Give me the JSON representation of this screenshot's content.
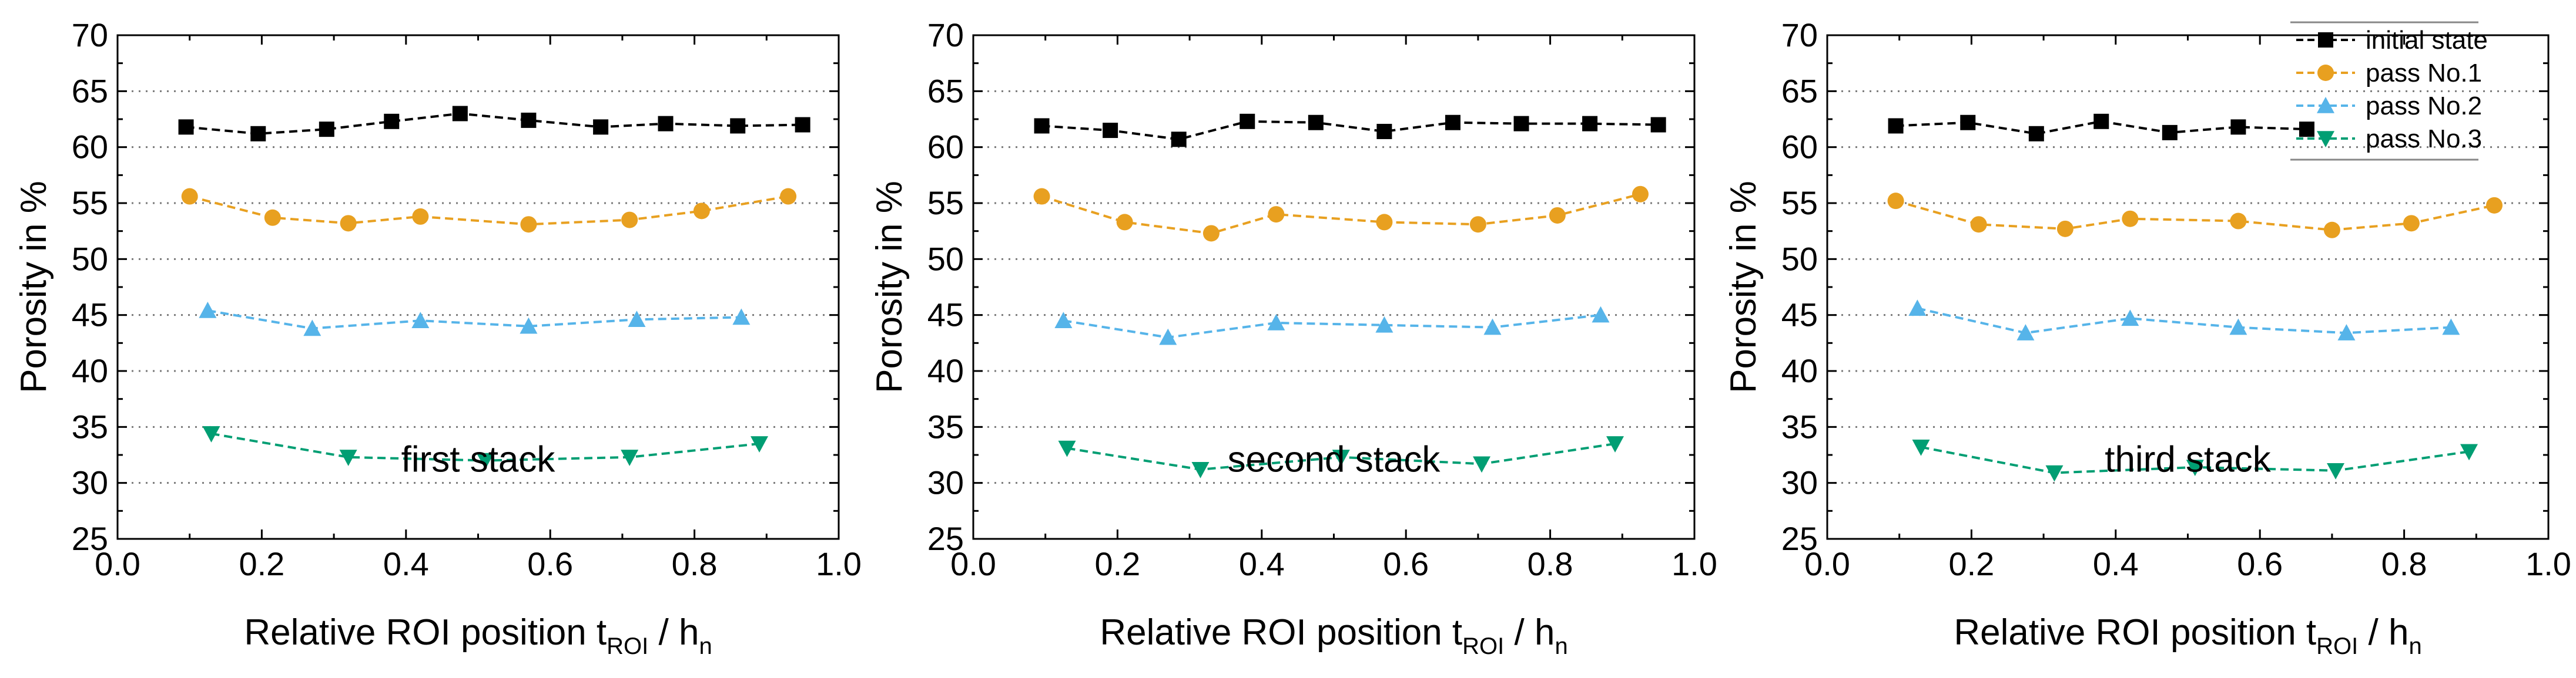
{
  "chart_data": [
    {
      "type": "line",
      "annotation": "first stack",
      "xlabel_parts": [
        "Relative ROI position t",
        "ROI",
        " / h",
        "n"
      ],
      "ylabel": "Porosity in %",
      "xlim": [
        0.0,
        1.0
      ],
      "ylim": [
        25,
        70
      ],
      "xticks": [
        "0.0",
        "0.2",
        "0.4",
        "0.6",
        "0.8",
        "1.0"
      ],
      "yticks": [
        "25",
        "30",
        "35",
        "40",
        "45",
        "50",
        "55",
        "60",
        "65",
        "70"
      ],
      "grid": "horizontal dotted",
      "series": [
        {
          "key": "initial",
          "x": [
            0.095,
            0.195,
            0.29,
            0.38,
            0.475,
            0.57,
            0.67,
            0.76,
            0.86,
            0.95
          ],
          "y": [
            61.8,
            61.2,
            61.6,
            62.3,
            63.0,
            62.4,
            61.8,
            62.1,
            61.9,
            62.0
          ]
        },
        {
          "key": "pass1",
          "x": [
            0.1,
            0.215,
            0.32,
            0.42,
            0.57,
            0.71,
            0.81,
            0.93
          ],
          "y": [
            55.6,
            53.7,
            53.2,
            53.8,
            53.1,
            53.5,
            54.3,
            55.6
          ]
        },
        {
          "key": "pass2",
          "x": [
            0.125,
            0.27,
            0.42,
            0.57,
            0.72,
            0.865
          ],
          "y": [
            45.4,
            43.8,
            44.5,
            44.0,
            44.6,
            44.8
          ]
        },
        {
          "key": "pass3",
          "x": [
            0.13,
            0.32,
            0.51,
            0.71,
            0.89
          ],
          "y": [
            34.4,
            32.3,
            32.0,
            32.3,
            33.5
          ]
        }
      ]
    },
    {
      "type": "line",
      "annotation": "second stack",
      "xlabel_parts": [
        "Relative ROI position t",
        "ROI",
        " / h",
        "n"
      ],
      "ylabel": "Porosity in %",
      "xlim": [
        0.0,
        1.0
      ],
      "ylim": [
        25,
        70
      ],
      "xticks": [
        "0.0",
        "0.2",
        "0.4",
        "0.6",
        "0.8",
        "1.0"
      ],
      "yticks": [
        "25",
        "30",
        "35",
        "40",
        "45",
        "50",
        "55",
        "60",
        "65",
        "70"
      ],
      "grid": "horizontal dotted",
      "series": [
        {
          "key": "initial",
          "x": [
            0.095,
            0.19,
            0.285,
            0.38,
            0.475,
            0.57,
            0.665,
            0.76,
            0.855,
            0.95
          ],
          "y": [
            61.9,
            61.5,
            60.7,
            62.3,
            62.2,
            61.4,
            62.2,
            62.1,
            62.1,
            62.0
          ]
        },
        {
          "key": "pass1",
          "x": [
            0.095,
            0.21,
            0.33,
            0.42,
            0.57,
            0.7,
            0.81,
            0.925
          ],
          "y": [
            55.6,
            53.3,
            52.3,
            54.0,
            53.3,
            53.1,
            53.9,
            55.8
          ]
        },
        {
          "key": "pass2",
          "x": [
            0.125,
            0.27,
            0.42,
            0.57,
            0.72,
            0.87
          ],
          "y": [
            44.5,
            43.0,
            44.3,
            44.1,
            43.9,
            45.0
          ]
        },
        {
          "key": "pass3",
          "x": [
            0.13,
            0.315,
            0.51,
            0.705,
            0.89
          ],
          "y": [
            33.1,
            31.2,
            32.3,
            31.7,
            33.5
          ]
        }
      ]
    },
    {
      "type": "line",
      "annotation": "third stack",
      "xlabel_parts": [
        "Relative ROI position t",
        "ROI",
        " / h",
        "n"
      ],
      "ylabel": "Porosity in %",
      "xlim": [
        0.0,
        1.0
      ],
      "ylim": [
        25,
        70
      ],
      "xticks": [
        "0.0",
        "0.2",
        "0.4",
        "0.6",
        "0.8",
        "1.0"
      ],
      "yticks": [
        "25",
        "30",
        "35",
        "40",
        "45",
        "50",
        "55",
        "60",
        "65",
        "70"
      ],
      "grid": "horizontal dotted",
      "series": [
        {
          "key": "initial",
          "x": [
            0.095,
            0.195,
            0.29,
            0.38,
            0.475,
            0.57,
            0.665
          ],
          "y": [
            61.9,
            62.2,
            61.2,
            62.3,
            61.3,
            61.8,
            61.6
          ]
        },
        {
          "key": "pass1",
          "x": [
            0.095,
            0.21,
            0.33,
            0.42,
            0.57,
            0.7,
            0.81,
            0.925
          ],
          "y": [
            55.2,
            53.1,
            52.7,
            53.6,
            53.4,
            52.6,
            53.2,
            54.8
          ]
        },
        {
          "key": "pass2",
          "x": [
            0.125,
            0.275,
            0.42,
            0.57,
            0.72,
            0.865
          ],
          "y": [
            45.6,
            43.4,
            44.7,
            43.9,
            43.4,
            43.9
          ]
        },
        {
          "key": "pass3",
          "x": [
            0.13,
            0.315,
            0.51,
            0.705,
            0.89
          ],
          "y": [
            33.2,
            30.9,
            31.4,
            31.1,
            32.8
          ]
        }
      ]
    }
  ],
  "legend": {
    "placement": "top-right of third panel",
    "entries": [
      {
        "key": "initial",
        "label": "initial state",
        "color": "#000000",
        "marker": "square"
      },
      {
        "key": "pass1",
        "label": "pass No.1",
        "color": "#e8a020",
        "marker": "circle"
      },
      {
        "key": "pass2",
        "label": "pass No.2",
        "color": "#56b4e9",
        "marker": "triangle-up"
      },
      {
        "key": "pass3",
        "label": "pass No.3",
        "color": "#009e73",
        "marker": "triangle-down"
      }
    ]
  }
}
